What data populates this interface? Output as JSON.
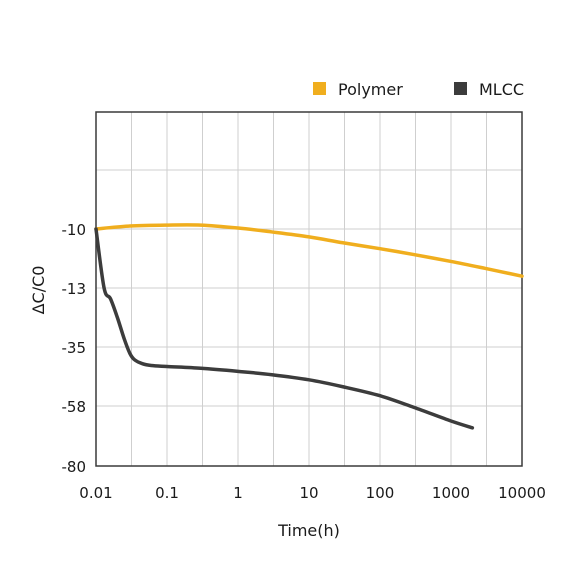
{
  "chart_data": {
    "type": "line",
    "xlabel": "Time(h)",
    "ylabel": "ΔC/C0",
    "x_scale": "log",
    "xlim": [
      0.01,
      10000
    ],
    "x_ticks": [
      0.01,
      0.1,
      1,
      10,
      100,
      1000,
      10000
    ],
    "x_tick_labels": [
      "0.01",
      "0.1",
      "1",
      "10",
      "100",
      "1000",
      "10000"
    ],
    "y_tick_labels": [
      "-10",
      "-13",
      "-35",
      "-58",
      "-80"
    ],
    "grid": true,
    "legend_position": "top-right",
    "series": [
      {
        "name": "Polymer",
        "color": "#f0ae1e",
        "x": [
          0.01,
          0.03,
          0.1,
          0.3,
          1,
          3,
          10,
          30,
          100,
          300,
          1000,
          3000,
          10000
        ],
        "y": [
          -10,
          -9.85,
          -9.8,
          -9.8,
          -9.95,
          -10.15,
          -10.4,
          -10.7,
          -11.0,
          -11.3,
          -11.65,
          -12.0,
          -12.4
        ]
      },
      {
        "name": "MLCC",
        "color": "#3c3c3c",
        "x": [
          0.01,
          0.013,
          0.016,
          0.02,
          0.025,
          0.03,
          0.035,
          0.045,
          0.06,
          0.1,
          0.3,
          1,
          3,
          10,
          30,
          100,
          300,
          1000,
          2000
        ],
        "y": [
          -10,
          -13,
          -17,
          -24,
          -32,
          -37.5,
          -40,
          -41.5,
          -42.2,
          -42.6,
          -43.3,
          -44.5,
          -45.8,
          -47.8,
          -50.5,
          -54,
          -58.5,
          -63.5,
          -66
        ]
      }
    ]
  }
}
